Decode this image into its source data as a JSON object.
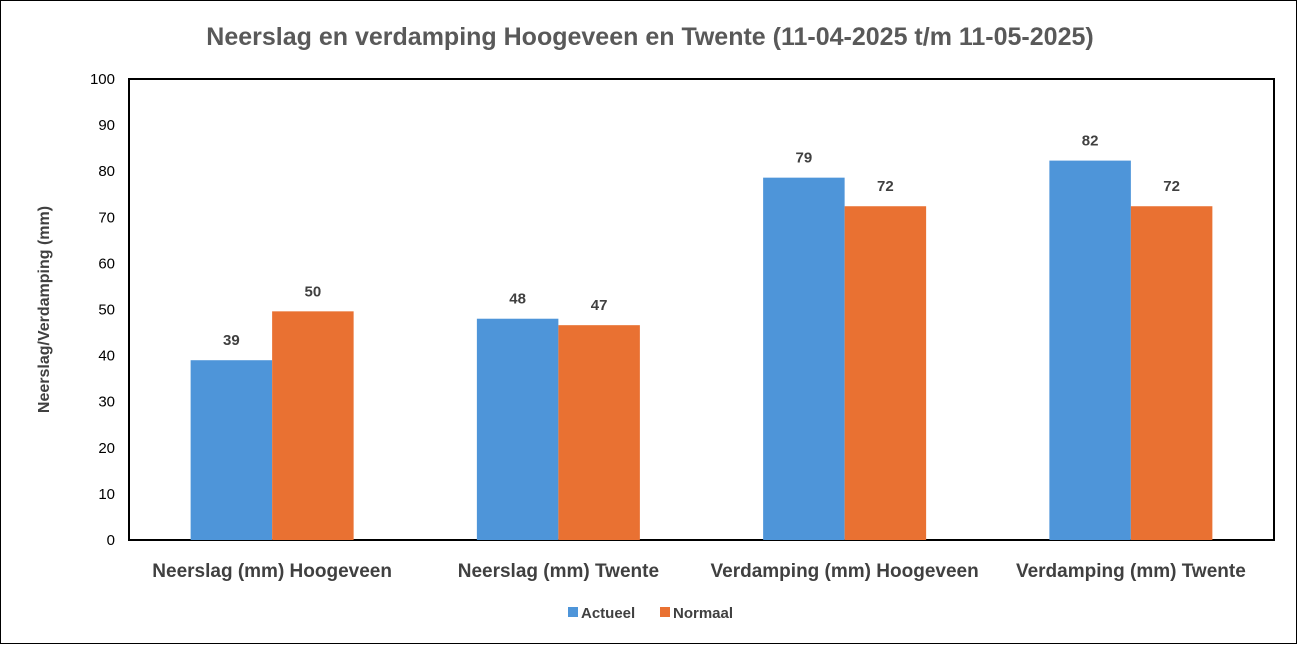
{
  "chart_data": {
    "type": "bar",
    "title": "Neerslag en verdamping Hoogeveen en Twente (11-04-2025 t/m 11-05-2025)",
    "ylabel": "Neerslag/Verdamping (mm)",
    "xlabel": "",
    "ylim": [
      0,
      100
    ],
    "yticks": [
      0,
      10,
      20,
      30,
      40,
      50,
      60,
      70,
      80,
      90,
      100
    ],
    "grid": false,
    "legend_position": "bottom",
    "categories": [
      "Neerslag (mm) Hoogeveen",
      "Neerslag (mm) Twente",
      "Verdamping (mm) Hoogeveen",
      "Verdamping (mm) Twente"
    ],
    "series": [
      {
        "name": "Actueel",
        "color": "#4E95D9",
        "values": [
          39,
          48,
          78.6,
          82.3
        ],
        "labels": [
          "39",
          "48",
          "79",
          "82"
        ]
      },
      {
        "name": "Normaal",
        "color": "#E97132",
        "values": [
          49.6,
          46.6,
          72.4,
          72.4
        ],
        "labels": [
          "50",
          "47",
          "72",
          "72"
        ]
      }
    ]
  }
}
